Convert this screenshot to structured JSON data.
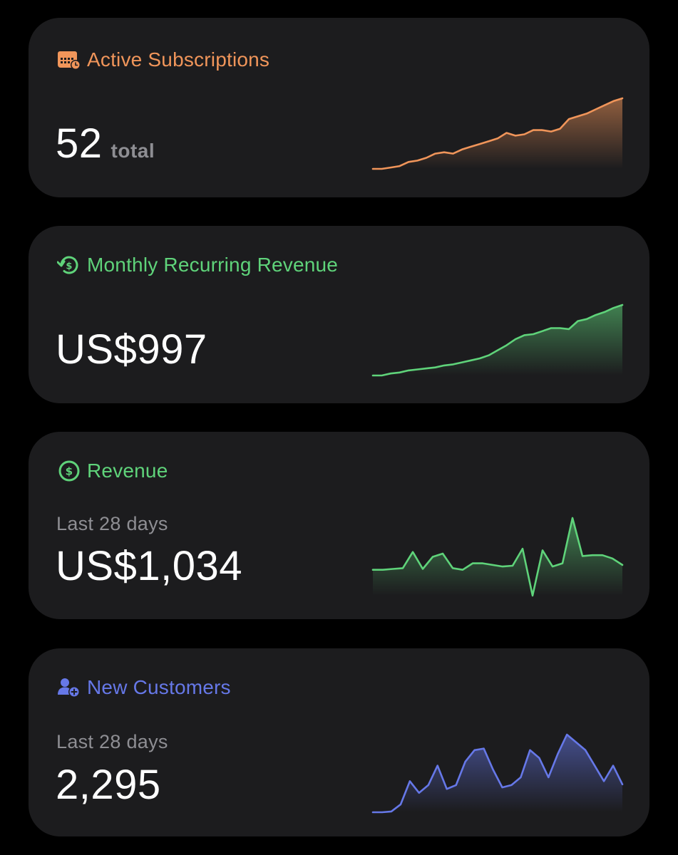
{
  "cards": [
    {
      "id": "subs",
      "title": "Active Subscriptions",
      "icon": "calendar-clock-icon",
      "color": "#f0955a",
      "value": "52",
      "unit": "total",
      "subtitle": "",
      "sparkline": [
        0,
        0,
        1,
        2,
        5,
        6,
        8,
        11,
        12,
        11,
        14,
        16,
        18,
        20,
        22,
        26,
        24,
        25,
        28,
        28,
        27,
        29,
        36,
        38,
        40,
        43,
        46,
        49,
        51
      ]
    },
    {
      "id": "mrr",
      "title": "Monthly Recurring Revenue",
      "icon": "recurring-dollar-icon",
      "color": "#5fd37a",
      "value": "US$997",
      "unit": "",
      "subtitle": "",
      "sparkline": [
        0,
        0,
        2,
        3,
        5,
        6,
        7,
        8,
        10,
        11,
        13,
        15,
        17,
        20,
        25,
        30,
        36,
        40,
        41,
        44,
        47,
        47,
        46,
        54,
        56,
        60,
        63,
        67,
        70
      ]
    },
    {
      "id": "rev",
      "title": "Revenue",
      "icon": "dollar-circle-icon",
      "color": "#5fd37a",
      "value": "US$1,034",
      "unit": "",
      "subtitle": "Last 28 days",
      "sparkline": [
        0,
        0,
        1,
        2,
        22,
        1,
        16,
        20,
        2,
        0,
        8,
        8,
        6,
        4,
        5,
        26,
        -32,
        24,
        4,
        8,
        64,
        17,
        18,
        18,
        14,
        6
      ]
    },
    {
      "id": "cust",
      "title": "New Customers",
      "icon": "person-add-icon",
      "color": "#6678e8",
      "value": "2,295",
      "unit": "",
      "subtitle": "Last 28 days",
      "sparkline": [
        0,
        0,
        1,
        10,
        40,
        25,
        35,
        60,
        30,
        35,
        65,
        80,
        82,
        55,
        32,
        35,
        45,
        80,
        70,
        45,
        75,
        100,
        90,
        80,
        60,
        40,
        60,
        36
      ]
    }
  ]
}
